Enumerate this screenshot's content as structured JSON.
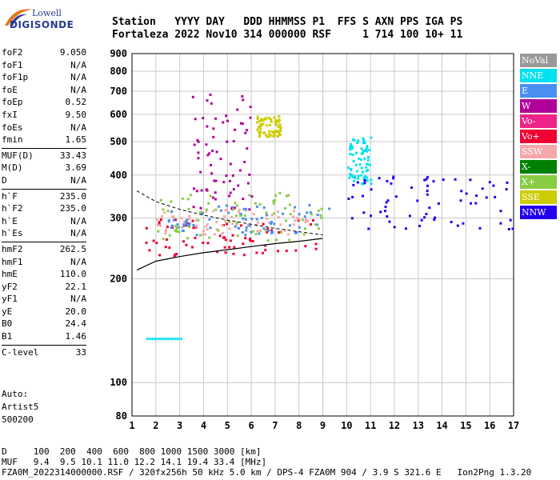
{
  "logo": {
    "top": "Lowell",
    "bottom": "DIGISONDE"
  },
  "header": {
    "line1": "Station   YYYY DAY   DDD HHMMSS P1  FFS S AXN PPS IGA PS",
    "line2": "Fortaleza 2022 Nov10 314 000000 RSF     1 714 100 10+ 11"
  },
  "params": {
    "group1": [
      {
        "label": "foF2",
        "value": "9.050"
      },
      {
        "label": "foF1",
        "value": "N/A"
      },
      {
        "label": "foF1p",
        "value": "N/A"
      },
      {
        "label": "foE",
        "value": "N/A"
      },
      {
        "label": "foEp",
        "value": "0.52"
      },
      {
        "label": "fxI",
        "value": "9.50"
      },
      {
        "label": "foEs",
        "value": "N/A"
      },
      {
        "label": "fmin",
        "value": "1.65"
      }
    ],
    "group2": [
      {
        "label": "MUF(D)",
        "value": "33.43"
      },
      {
        "label": "M(D)",
        "value": "3.69"
      },
      {
        "label": "D",
        "value": "N/A"
      }
    ],
    "group3": [
      {
        "label": "h`F",
        "value": "235.0"
      },
      {
        "label": "h`F2",
        "value": "235.0"
      },
      {
        "label": "h`E",
        "value": "N/A"
      },
      {
        "label": "h`Es",
        "value": "N/A"
      }
    ],
    "group4": [
      {
        "label": "hmF2",
        "value": "262.5"
      },
      {
        "label": "hmF1",
        "value": "N/A"
      },
      {
        "label": "hmE",
        "value": "110.0"
      },
      {
        "label": "yF2",
        "value": "22.1"
      },
      {
        "label": "yF1",
        "value": "N/A"
      },
      {
        "label": "yE",
        "value": "20.0"
      },
      {
        "label": "B0",
        "value": "24.4"
      },
      {
        "label": "B1",
        "value": "1.46"
      }
    ],
    "group5": [
      {
        "label": "C-level",
        "value": "33"
      }
    ]
  },
  "auto": {
    "line1": "Auto:",
    "line2": "Artist5",
    "line3": "500200"
  },
  "footer": {
    "line1": "D     100  200  400  600  800 1000 1500 3000 [km]",
    "line2": "MUF   9.4  9.5 10.1 11.0 12.2 14.1 19.4 33.4 [MHz]",
    "line3": "FZA0M_2022314000000.RSF / 320fx256h 50 kHz 5.0 km / DPS-4 FZA0M 904 / 3.9 S 321.6 E   Ion2Png 1.3.20"
  },
  "legend": [
    {
      "label": "NoVal",
      "color": "#999999"
    },
    {
      "label": "NNE",
      "color": "#00e0f0"
    },
    {
      "label": "E",
      "color": "#4a8ff0"
    },
    {
      "label": "W",
      "color": "#b0009a"
    },
    {
      "label": "Vo-",
      "color": "#ee2288"
    },
    {
      "label": "Vo+",
      "color": "#ee0033"
    },
    {
      "label": "SSW",
      "color": "#f4a8a8"
    },
    {
      "label": "X-",
      "color": "#008000"
    },
    {
      "label": "X+",
      "color": "#88cc44"
    },
    {
      "label": "SSE",
      "color": "#cccc00"
    },
    {
      "label": "NNW",
      "color": "#2200ee"
    }
  ],
  "chart_data": {
    "type": "scatter",
    "xlabel": "",
    "ylabel": "",
    "xlim": [
      1,
      17
    ],
    "ylim": [
      80,
      900
    ],
    "y_scale": "log",
    "x_ticks": [
      "1",
      "2",
      "3",
      "4",
      "5",
      "6",
      "7",
      "8",
      "9",
      "10",
      "11",
      "12",
      "13",
      "14",
      "15",
      "16",
      "17"
    ],
    "y_ticks": [
      "80",
      "100",
      "200",
      "300",
      "400",
      "500",
      "600",
      "700",
      "800",
      "900"
    ],
    "grid": true,
    "series": [
      {
        "name": "Vo+",
        "color": "#ee0033",
        "band": {
          "x": [
            1.5,
            9.0
          ],
          "y": [
            235,
            300
          ]
        }
      },
      {
        "name": "SSW",
        "color": "#f4a8a8",
        "band": {
          "x": [
            1.8,
            8.5
          ],
          "y": [
            270,
            320
          ]
        }
      },
      {
        "name": "E",
        "color": "#4a8ff0",
        "band": {
          "x": [
            2.5,
            9.5
          ],
          "y": [
            270,
            330
          ]
        }
      },
      {
        "name": "W",
        "color": "#b0009a",
        "band": {
          "x": [
            3.5,
            6.0
          ],
          "y": [
            320,
            690
          ]
        }
      },
      {
        "name": "NNE",
        "color": "#00e0f0",
        "band": {
          "x": [
            10,
            11
          ],
          "y": [
            380,
            520
          ]
        }
      },
      {
        "name": "NNW",
        "color": "#2200ee",
        "band": {
          "x": [
            10,
            17
          ],
          "y": [
            280,
            400
          ]
        }
      },
      {
        "name": "SSE",
        "color": "#cccc00",
        "band": {
          "x": [
            6.2,
            7.2
          ],
          "y": [
            520,
            600
          ]
        }
      },
      {
        "name": "X+",
        "color": "#88cc44",
        "band": {
          "x": [
            2,
            9
          ],
          "y": [
            260,
            360
          ]
        }
      }
    ],
    "profile": {
      "x": [
        1.2,
        2,
        3,
        4,
        5,
        6,
        7,
        8,
        9
      ],
      "y": [
        212,
        225,
        232,
        238,
        243,
        248,
        253,
        257,
        262
      ]
    },
    "upper_curve": {
      "x": [
        1.2,
        2,
        3,
        4,
        5,
        6,
        7,
        8,
        9
      ],
      "y": [
        360,
        335,
        318,
        306,
        296,
        288,
        280,
        274,
        268
      ]
    },
    "low_echoes": {
      "x": [
        1.6,
        3.1
      ],
      "y": [
        135,
        135
      ],
      "color": "#00e0f0"
    }
  }
}
